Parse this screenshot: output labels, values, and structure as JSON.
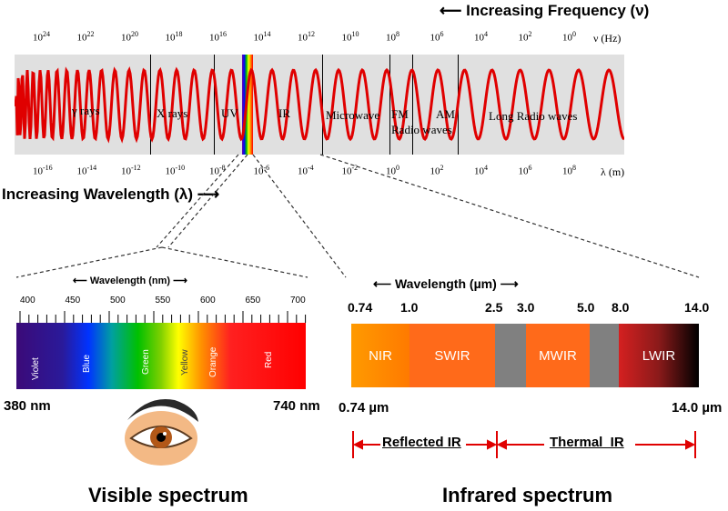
{
  "top": {
    "freq_title": "Increasing Frequency (ν)",
    "freq_unit": "ν (Hz)",
    "freq_ticks": [
      "10^24",
      "10^22",
      "10^20",
      "10^18",
      "10^16",
      "10^14",
      "10^12",
      "10^10",
      "10^8",
      "10^6",
      "10^4",
      "10^2",
      "10^0"
    ],
    "wave_ticks": [
      "10^-16",
      "10^-14",
      "10^-12",
      "10^-10",
      "10^-8",
      "10^-6",
      "10^-4",
      "10^-2",
      "10^0",
      "10^2",
      "10^4",
      "10^6",
      "10^8"
    ],
    "wave_unit": "λ (m)",
    "wave_title": "Increasing Wavelength (λ)",
    "regions": {
      "gamma": "γ rays",
      "xrays": "X rays",
      "uv": "UV",
      "ir": "IR",
      "microwave": "Microwave",
      "fm": "FM",
      "am": "AM",
      "radio": "Radio waves",
      "long_radio": "Long Radio waves"
    }
  },
  "visible": {
    "axis_title": "Wavelength (nm)",
    "ticks": [
      "400",
      "450",
      "500",
      "550",
      "600",
      "650",
      "700"
    ],
    "colors": [
      "Violet",
      "Blue",
      "Green",
      "Yellow",
      "Orange",
      "Red"
    ],
    "left_label": "380 nm",
    "right_label": "740 nm",
    "caption": "Visible spectrum"
  },
  "infrared": {
    "axis_title": "Wavelength (µm)",
    "ticks": [
      "0.74",
      "1.0",
      "2.5",
      "3.0",
      "5.0",
      "8.0",
      "14.0"
    ],
    "segments": [
      "NIR",
      "SWIR",
      "MWIR",
      "LWIR"
    ],
    "left_label": "0.74 µm",
    "right_label": "14.0 µm",
    "reflected": "Reflected IR",
    "thermal": "Thermal  IR",
    "caption": "Infrared spectrum"
  }
}
